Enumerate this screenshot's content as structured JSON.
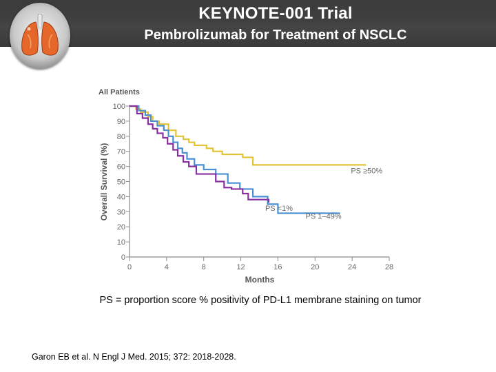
{
  "header": {
    "title": "KEYNOTE-001 Trial",
    "subtitle": "Pembrolizumab for Treatment of NSCLC",
    "logo_icon": "lungs-icon"
  },
  "chart_data": {
    "type": "line",
    "step": true,
    "panel_title": "All Patients",
    "xlabel": "Months",
    "ylabel": "Overall Survival (%)",
    "xlim": [
      0,
      28
    ],
    "ylim": [
      0,
      100
    ],
    "xticks": [
      0,
      4,
      8,
      12,
      16,
      20,
      24,
      28
    ],
    "yticks": [
      0,
      10,
      20,
      30,
      40,
      50,
      60,
      70,
      80,
      90,
      100
    ],
    "grid": false,
    "series": [
      {
        "name": "PS ≥50%",
        "color": "#e3c233",
        "x": [
          0,
          0.7,
          1.2,
          2.0,
          2.5,
          3.2,
          4.2,
          5.0,
          5.8,
          6.4,
          7.0,
          8.3,
          9.0,
          10.0,
          12.2,
          13.3,
          25.5
        ],
        "y": [
          100,
          98,
          96,
          93,
          90,
          88,
          84,
          80,
          78,
          76,
          74,
          72,
          70,
          68,
          66,
          61,
          61
        ]
      },
      {
        "name": "PS 1–49%",
        "color": "#4a8fd2",
        "x": [
          0,
          1.0,
          1.7,
          2.3,
          3.0,
          3.7,
          4.2,
          4.7,
          5.2,
          5.7,
          6.2,
          7.0,
          8.0,
          9.3,
          10.6,
          11.9,
          13.3,
          14.9,
          16.0,
          20.6,
          22.7
        ],
        "y": [
          100,
          97,
          94,
          90,
          87,
          84,
          80,
          76,
          72,
          69,
          65,
          61,
          58,
          55,
          49,
          45,
          40,
          35,
          29,
          29,
          29
        ]
      },
      {
        "name": "PS <1%",
        "color": "#8a2fa0",
        "x": [
          0,
          0.8,
          1.4,
          2.0,
          2.5,
          3.0,
          3.6,
          4.1,
          4.7,
          5.2,
          5.8,
          6.4,
          7.2,
          8.8,
          9.3,
          10.2,
          11.0,
          12.2,
          12.8,
          15.0
        ],
        "y": [
          100,
          95,
          92,
          88,
          85,
          82,
          79,
          75,
          71,
          67,
          63,
          60,
          55,
          55,
          50,
          46,
          45,
          42,
          38,
          36
        ]
      }
    ],
    "labels": [
      {
        "text": "PS ≥50%",
        "series": "PS ≥50%"
      },
      {
        "text": "PS <1%",
        "series": "PS <1%"
      },
      {
        "text": "PS 1–49%",
        "series": "PS 1–49%"
      }
    ]
  },
  "caption": "PS = proportion score % positivity of PD-L1 membrane staining on tumor",
  "citation": "Garon EB et al. N Engl J Med. 2015; 372: 2018-2028."
}
